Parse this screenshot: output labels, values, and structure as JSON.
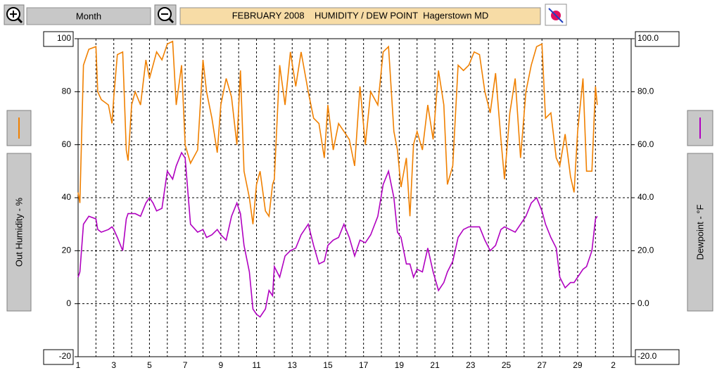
{
  "toolbar": {
    "period": "Month"
  },
  "chart_data": {
    "type": "line",
    "title": "FEBRUARY 2008    HUMIDITY / DEW POINT  Hagerstown MD",
    "x": [
      1.0,
      1.1,
      1.3,
      1.6,
      2.0,
      2.1,
      2.3,
      2.7,
      2.9,
      3.0,
      3.2,
      3.5,
      3.7,
      3.8,
      4.0,
      4.2,
      4.5,
      4.8,
      5.0,
      5.2,
      5.4,
      5.7,
      6.0,
      6.3,
      6.5,
      6.8,
      7.0,
      7.3,
      7.7,
      8.0,
      8.2,
      8.5,
      8.8,
      9.0,
      9.3,
      9.6,
      9.9,
      10.1,
      10.3,
      10.6,
      10.8,
      11.0,
      11.2,
      11.5,
      11.7,
      11.9,
      12.0,
      12.3,
      12.6,
      12.9,
      13.2,
      13.5,
      13.9,
      14.2,
      14.5,
      14.8,
      15.0,
      15.3,
      15.6,
      15.9,
      16.2,
      16.5,
      16.8,
      17.1,
      17.4,
      17.8,
      18.1,
      18.4,
      18.7,
      18.9,
      19.1,
      19.4,
      19.6,
      19.8,
      20.0,
      20.3,
      20.6,
      20.9,
      21.2,
      21.5,
      21.7,
      22.0,
      22.3,
      22.6,
      22.9,
      23.2,
      23.5,
      23.8,
      24.1,
      24.4,
      24.7,
      24.9,
      25.2,
      25.5,
      25.8,
      26.1,
      26.4,
      26.7,
      27.0,
      27.2,
      27.5,
      27.8,
      28.0,
      28.3,
      28.6,
      28.8,
      29.0,
      29.3,
      29.5,
      29.8,
      30.0,
      30.1
    ],
    "series": [
      {
        "name": "Out Humidity - %",
        "color": "#f08000",
        "axis": "y",
        "values": [
          42,
          38,
          90,
          96,
          97,
          80,
          77,
          75,
          68,
          78,
          94,
          95,
          58,
          54,
          75,
          80,
          75,
          92,
          85,
          90,
          95,
          92,
          98,
          99,
          75,
          90,
          60,
          53,
          58,
          92,
          80,
          70,
          57,
          75,
          85,
          78,
          60,
          88,
          50,
          40,
          30,
          45,
          50,
          35,
          33,
          45,
          47,
          90,
          75,
          95,
          82,
          95,
          80,
          70,
          68,
          55,
          75,
          58,
          68,
          65,
          62,
          52,
          82,
          60,
          80,
          75,
          95,
          97,
          65,
          58,
          44,
          55,
          33,
          60,
          65,
          58,
          75,
          62,
          88,
          75,
          45,
          52,
          90,
          88,
          90,
          95,
          94,
          80,
          72,
          87,
          62,
          47,
          72,
          85,
          55,
          80,
          90,
          97,
          98,
          70,
          72,
          55,
          52,
          64,
          48,
          42,
          65,
          85,
          50,
          50,
          82,
          75
        ]
      },
      {
        "name": "Dewpoint - °F",
        "color": "#b000c0",
        "axis": "y2",
        "values": [
          10,
          12,
          30,
          33,
          32,
          28,
          27,
          28,
          29,
          28,
          25,
          20,
          32,
          34,
          34,
          34,
          33,
          38,
          40,
          38,
          35,
          36,
          50,
          47,
          52,
          57,
          55,
          30,
          27,
          28,
          25,
          26,
          28,
          26,
          24,
          33,
          38,
          34,
          22,
          12,
          -2,
          -4,
          -5,
          -2,
          5,
          3,
          14,
          10,
          18,
          20,
          21,
          26,
          30,
          22,
          15,
          16,
          22,
          24,
          25,
          30,
          25,
          18,
          24,
          23,
          26,
          33,
          45,
          50,
          40,
          27,
          25,
          15,
          15,
          10,
          13,
          12,
          21,
          12,
          5,
          8,
          12,
          16,
          25,
          28,
          29,
          29,
          29,
          24,
          20,
          22,
          28,
          29,
          28,
          27,
          30,
          33,
          38,
          40,
          35,
          30,
          25,
          21,
          10,
          6,
          8,
          8,
          10,
          13,
          14,
          20,
          32,
          33
        ]
      }
    ],
    "xlim": [
      1,
      32
    ],
    "xticks": [
      1,
      3,
      5,
      7,
      9,
      11,
      13,
      15,
      17,
      19,
      21,
      23,
      25,
      27,
      29,
      {
        "value": 31,
        "label": "2"
      }
    ],
    "ylim": [
      -20,
      100
    ],
    "yticks": [
      -20,
      0,
      20,
      40,
      60,
      80,
      100
    ],
    "y2lim": [
      -20,
      100
    ],
    "y2ticks": [
      {
        "value": -20,
        "label": "-20.0"
      },
      {
        "value": 0,
        "label": "0.0"
      },
      {
        "value": 20,
        "label": "20.0"
      },
      {
        "value": 40,
        "label": "40.0"
      },
      {
        "value": 60,
        "label": "60.0"
      },
      {
        "value": 80,
        "label": "80.0"
      },
      {
        "value": 100,
        "label": "100.0"
      }
    ],
    "grid": true
  }
}
